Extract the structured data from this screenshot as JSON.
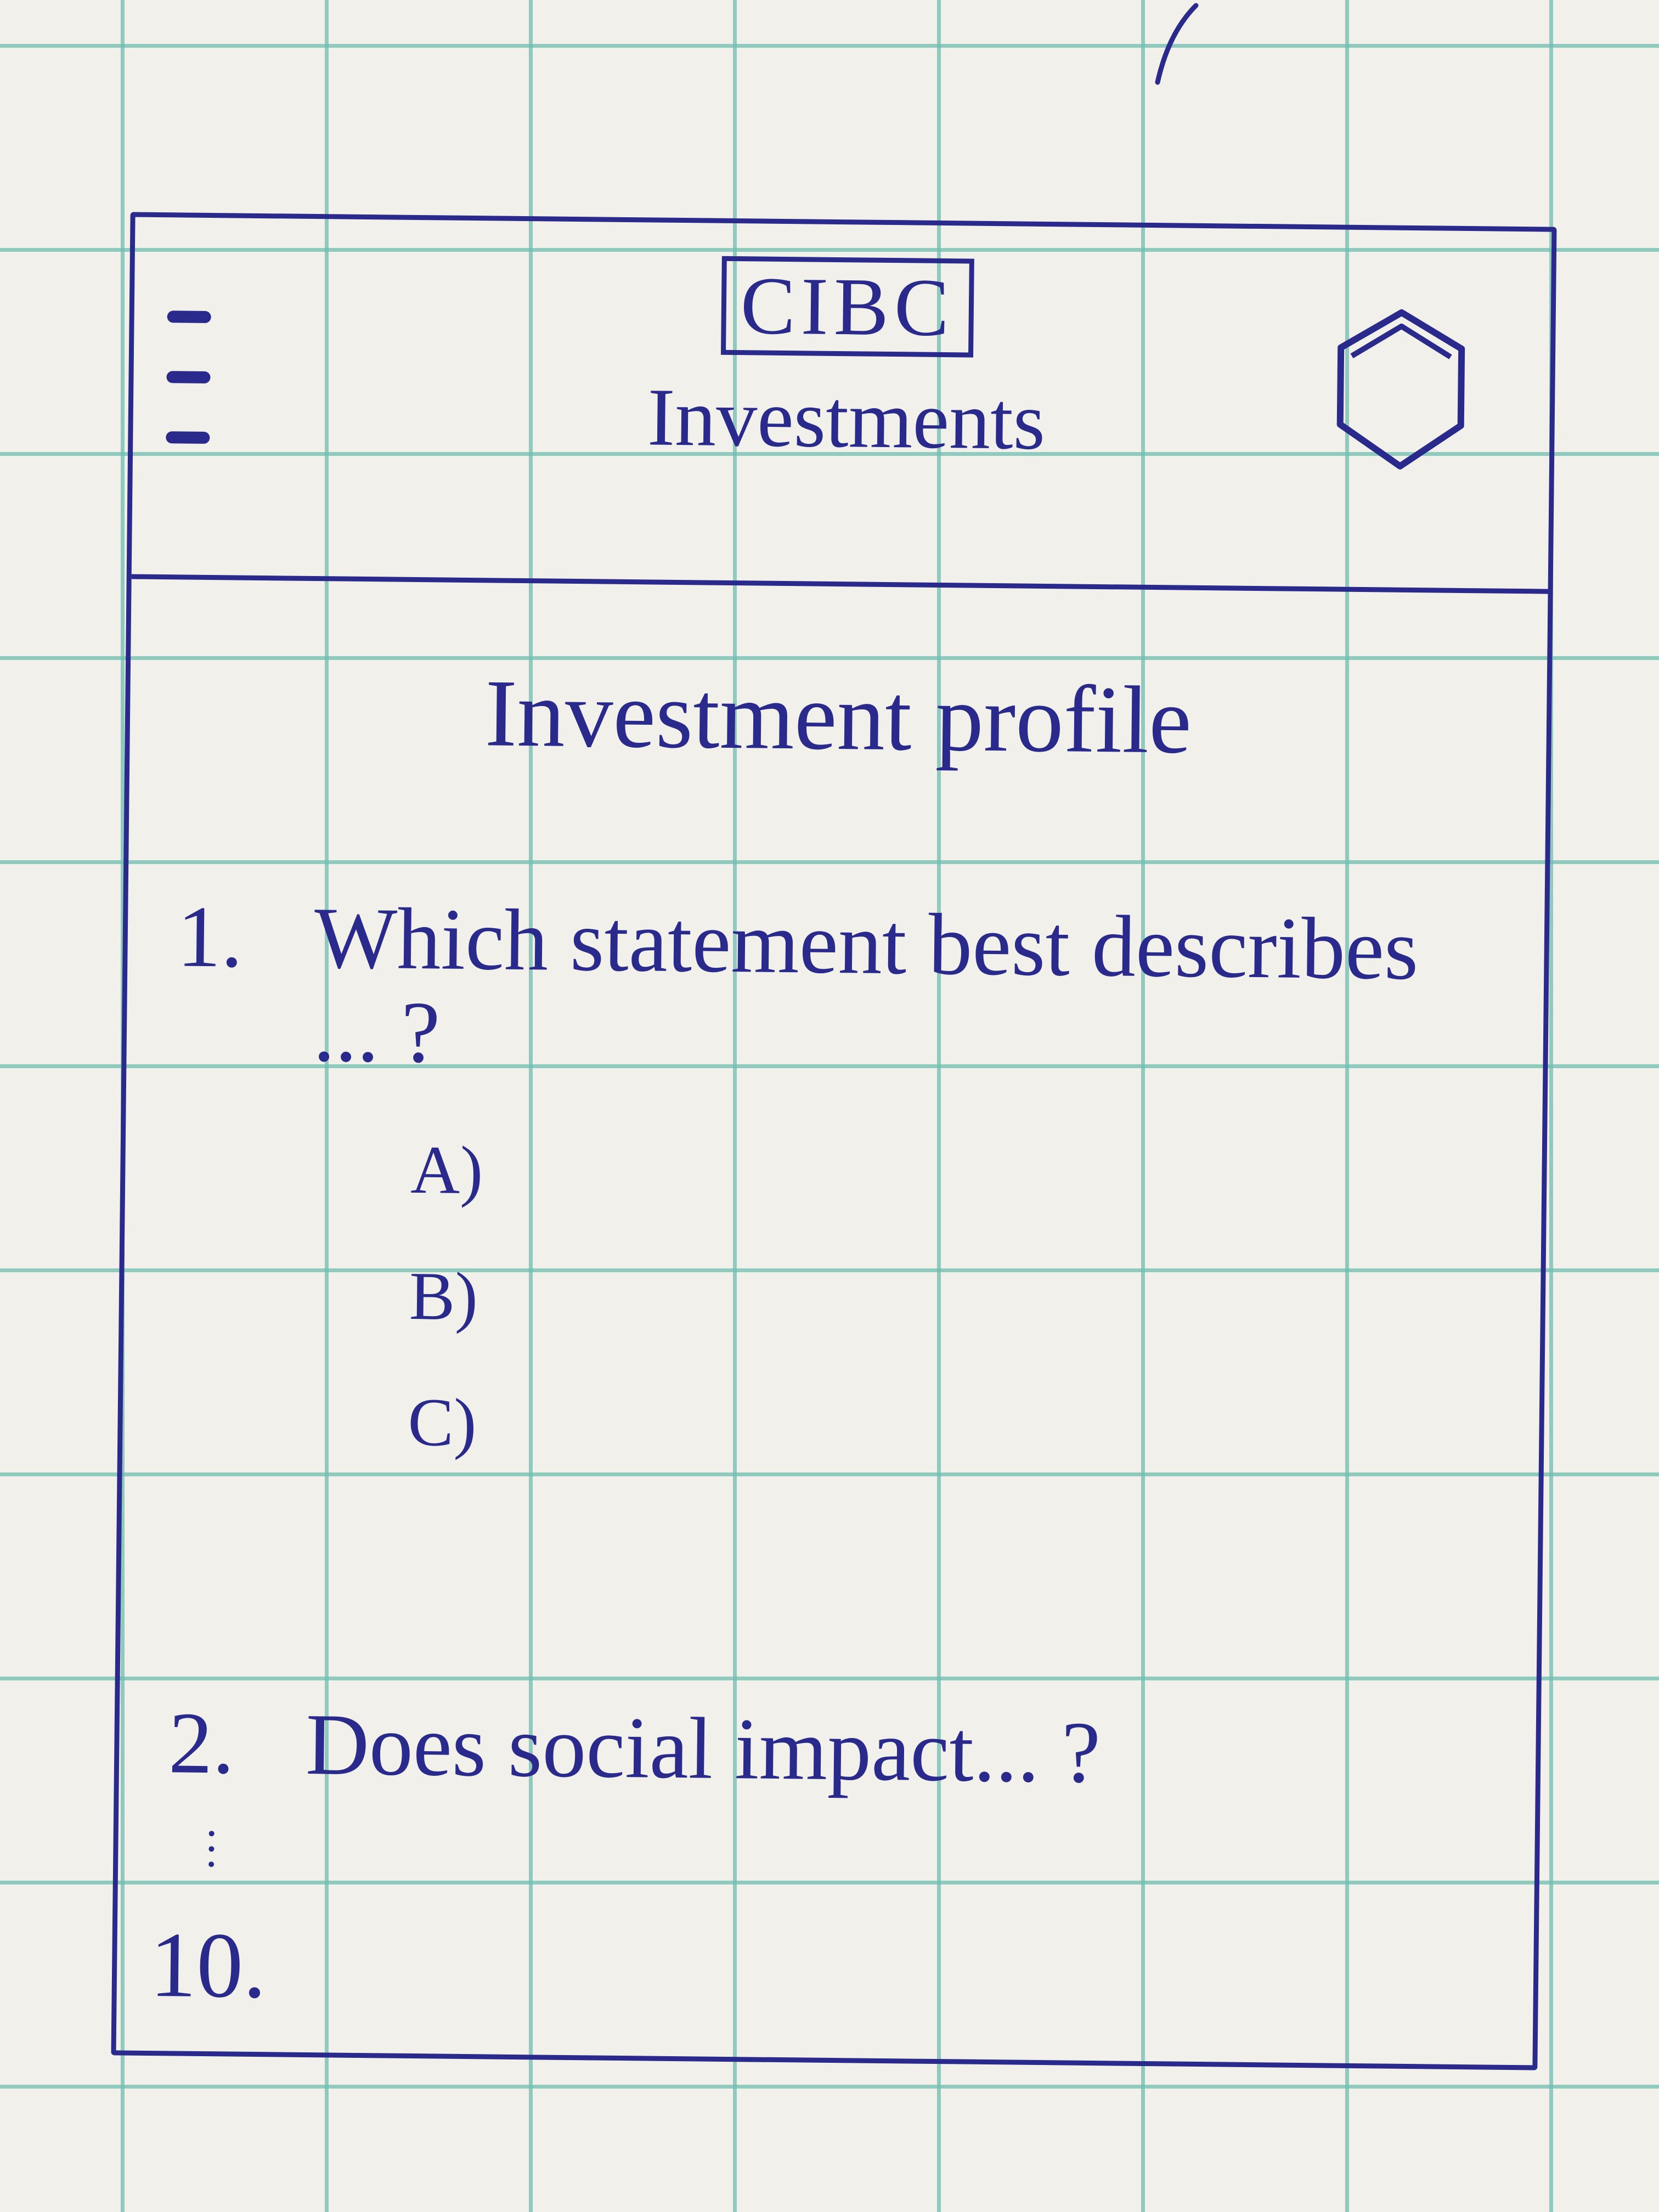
{
  "header": {
    "menu_icon": "hamburger-menu-icon",
    "logo_text": "CIBC",
    "title": "Investments",
    "profile_icon": "hexagon-profile-icon"
  },
  "main": {
    "page_title": "Investment profile",
    "questions": [
      {
        "number": "1.",
        "text": "Which statement best describes",
        "continuation": "... ?",
        "options": [
          "A)",
          "B)",
          "C)"
        ]
      },
      {
        "number": "2.",
        "text": "Does social impact... ?"
      }
    ],
    "last_question_number": "10."
  },
  "colors": {
    "ink": "#2a2a8c",
    "paper": "#f2f0ea",
    "grid": "#6ebeaf"
  }
}
